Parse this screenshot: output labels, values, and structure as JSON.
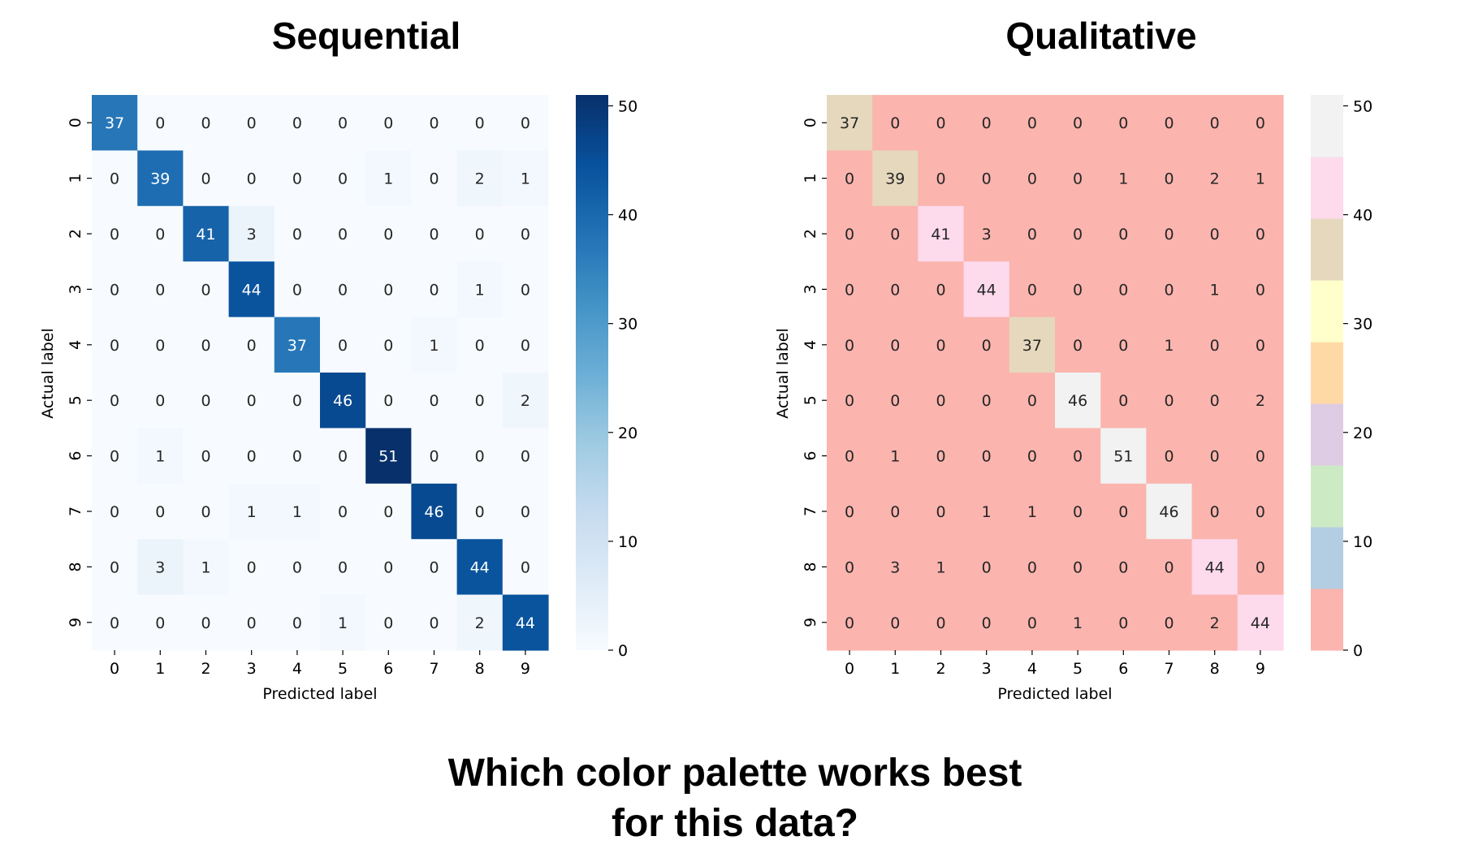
{
  "question_line1": "Which color palette works best",
  "question_line2": "for this data?",
  "chart_data": [
    {
      "type": "heatmap",
      "title": "Sequential",
      "xlabel": "Predicted label",
      "ylabel": "Actual label",
      "x": [
        "0",
        "1",
        "2",
        "3",
        "4",
        "5",
        "6",
        "7",
        "8",
        "9"
      ],
      "y": [
        "0",
        "1",
        "2",
        "3",
        "4",
        "5",
        "6",
        "7",
        "8",
        "9"
      ],
      "values": [
        [
          37,
          0,
          0,
          0,
          0,
          0,
          0,
          0,
          0,
          0
        ],
        [
          0,
          39,
          0,
          0,
          0,
          0,
          1,
          0,
          2,
          1
        ],
        [
          0,
          0,
          41,
          3,
          0,
          0,
          0,
          0,
          0,
          0
        ],
        [
          0,
          0,
          0,
          44,
          0,
          0,
          0,
          0,
          1,
          0
        ],
        [
          0,
          0,
          0,
          0,
          37,
          0,
          0,
          1,
          0,
          0
        ],
        [
          0,
          0,
          0,
          0,
          0,
          46,
          0,
          0,
          0,
          2
        ],
        [
          0,
          1,
          0,
          0,
          0,
          0,
          51,
          0,
          0,
          0
        ],
        [
          0,
          0,
          0,
          1,
          1,
          0,
          0,
          46,
          0,
          0
        ],
        [
          0,
          3,
          1,
          0,
          0,
          0,
          0,
          0,
          44,
          0
        ],
        [
          0,
          0,
          0,
          0,
          0,
          1,
          0,
          0,
          2,
          44
        ]
      ],
      "colormap": "Blues",
      "vmin": 0,
      "vmax": 51,
      "colorbar_ticks": [
        0,
        10,
        20,
        30,
        40,
        50
      ]
    },
    {
      "type": "heatmap",
      "title": "Qualitative",
      "xlabel": "Predicted label",
      "ylabel": "Actual label",
      "x": [
        "0",
        "1",
        "2",
        "3",
        "4",
        "5",
        "6",
        "7",
        "8",
        "9"
      ],
      "y": [
        "0",
        "1",
        "2",
        "3",
        "4",
        "5",
        "6",
        "7",
        "8",
        "9"
      ],
      "values": [
        [
          37,
          0,
          0,
          0,
          0,
          0,
          0,
          0,
          0,
          0
        ],
        [
          0,
          39,
          0,
          0,
          0,
          0,
          1,
          0,
          2,
          1
        ],
        [
          0,
          0,
          41,
          3,
          0,
          0,
          0,
          0,
          0,
          0
        ],
        [
          0,
          0,
          0,
          44,
          0,
          0,
          0,
          0,
          1,
          0
        ],
        [
          0,
          0,
          0,
          0,
          37,
          0,
          0,
          1,
          0,
          0
        ],
        [
          0,
          0,
          0,
          0,
          0,
          46,
          0,
          0,
          0,
          2
        ],
        [
          0,
          1,
          0,
          0,
          0,
          0,
          51,
          0,
          0,
          0
        ],
        [
          0,
          0,
          0,
          1,
          1,
          0,
          0,
          46,
          0,
          0
        ],
        [
          0,
          3,
          1,
          0,
          0,
          0,
          0,
          0,
          44,
          0
        ],
        [
          0,
          0,
          0,
          0,
          0,
          1,
          0,
          0,
          2,
          44
        ]
      ],
      "colormap": "Pastel1",
      "palette": [
        "#fbb4ae",
        "#b3cde3",
        "#ccebc5",
        "#decbe4",
        "#fed9a6",
        "#ffffcc",
        "#e5d8bd",
        "#fddaec",
        "#f2f2f2"
      ],
      "vmin": 0,
      "vmax": 51,
      "colorbar_ticks": [
        0,
        10,
        20,
        30,
        40,
        50
      ]
    }
  ]
}
